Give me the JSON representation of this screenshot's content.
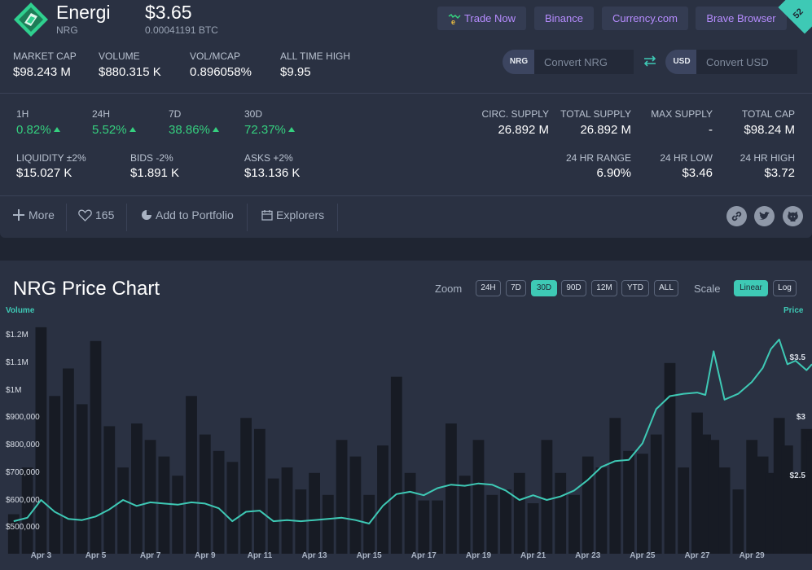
{
  "header": {
    "name": "Energi",
    "symbol": "NRG",
    "price": "$3.65",
    "price_btc": "0.00041191 BTC",
    "ribbon": "52",
    "buttons": [
      {
        "label": "Trade Now",
        "icon": "trade-now-logo-icon"
      },
      {
        "label": "Binance"
      },
      {
        "label": "Currency.com"
      },
      {
        "label": "Brave Browser"
      }
    ]
  },
  "stats": {
    "market_cap": {
      "label": "MARKET CAP",
      "value": "$98.243 M"
    },
    "volume": {
      "label": "VOLUME",
      "value": "$880.315 K"
    },
    "vol_mcap": {
      "label": "VOL/MCAP",
      "value": "0.896058%"
    },
    "ath": {
      "label": "ALL TIME HIGH",
      "value": "$9.95"
    }
  },
  "converter": {
    "from_code": "NRG",
    "from_placeholder": "Convert NRG",
    "to_code": "USD",
    "to_placeholder": "Convert USD",
    "swap_icon": "swap-arrows-icon"
  },
  "changes": [
    {
      "label": "1H",
      "value": "0.82%"
    },
    {
      "label": "24H",
      "value": "5.52%"
    },
    {
      "label": "7D",
      "value": "38.86%"
    },
    {
      "label": "30D",
      "value": "72.37%"
    }
  ],
  "supply": [
    {
      "label": "CIRC. SUPPLY",
      "value": "26.892 M"
    },
    {
      "label": "TOTAL SUPPLY",
      "value": "26.892 M"
    },
    {
      "label": "MAX SUPPLY",
      "value": "-"
    },
    {
      "label": "TOTAL CAP",
      "value": "$98.24 M"
    }
  ],
  "liquidity": [
    {
      "label": "LIQUIDITY ±2%",
      "value": "$15.027 K"
    },
    {
      "label": "BIDS -2%",
      "value": "$1.891 K"
    },
    {
      "label": "ASKS +2%",
      "value": "$13.136 K"
    }
  ],
  "range": [
    {
      "label": "24 HR RANGE",
      "value": "6.90%"
    },
    {
      "label": "24 HR LOW",
      "value": "$3.46"
    },
    {
      "label": "24 HR HIGH",
      "value": "$3.72"
    }
  ],
  "actions": {
    "more": "More",
    "likes": "165",
    "portfolio": "Add to Portfolio",
    "explorers": "Explorers"
  },
  "social_icons": [
    "link-icon",
    "twitter-icon",
    "github-icon"
  ],
  "chart_controls": {
    "title": "NRG Price Chart",
    "zoom_label": "Zoom",
    "zoom": [
      "24H",
      "7D",
      "30D",
      "90D",
      "12M",
      "YTD",
      "ALL"
    ],
    "zoom_active": "30D",
    "scale_label": "Scale",
    "scale": [
      "Linear",
      "Log"
    ],
    "scale_active": "Linear"
  },
  "colors": {
    "accent": "#3ec9b5",
    "positive": "#35d07f",
    "pill_text": "#b68cff",
    "volume_bars": "#171b24"
  },
  "chart_data": {
    "type": "line",
    "volume_axis_title": "Volume",
    "price_axis_title": "Price",
    "volume_ticks": [
      "$1.2M",
      "$1.1M",
      "$1M",
      "$900,000",
      "$800,000",
      "$700,000",
      "$600,000",
      "$500,000"
    ],
    "volume_tick_values": [
      1200000,
      1100000,
      1000000,
      900000,
      800000,
      700000,
      600000,
      500000
    ],
    "price_ticks": [
      "$3.5",
      "$3",
      "$2.5"
    ],
    "price_tick_values": [
      3.5,
      3.0,
      2.5
    ],
    "x_ticks": [
      "Apr 3",
      "Apr 5",
      "Apr 7",
      "Apr 9",
      "Apr 11",
      "Apr 13",
      "Apr 15",
      "Apr 17",
      "Apr 19",
      "Apr 21",
      "Apr 23",
      "Apr 25",
      "Apr 27",
      "Apr 29"
    ],
    "x": [
      2.0,
      2.5,
      3.0,
      3.5,
      4.0,
      4.5,
      5.0,
      5.5,
      6.0,
      6.5,
      7.0,
      7.5,
      8.0,
      8.5,
      9.0,
      9.5,
      10.0,
      10.5,
      11.0,
      11.5,
      12.0,
      12.5,
      13.0,
      13.5,
      14.0,
      14.5,
      15.0,
      15.5,
      16.0,
      16.5,
      17.0,
      17.5,
      18.0,
      18.5,
      19.0,
      19.5,
      20.0,
      20.5,
      21.0,
      21.5,
      22.0,
      22.5,
      23.0,
      23.5,
      24.0,
      24.5,
      25.0,
      25.5,
      26.0,
      26.5,
      27.0,
      27.3,
      27.6,
      28.0,
      28.5,
      29.0,
      29.4,
      29.7,
      30.0,
      30.3,
      30.6,
      31.0,
      31.2
    ],
    "series": [
      {
        "name": "Price",
        "values": [
          2.12,
          2.15,
          2.3,
          2.2,
          2.14,
          2.13,
          2.16,
          2.22,
          2.3,
          2.25,
          2.28,
          2.27,
          2.26,
          2.28,
          2.27,
          2.23,
          2.12,
          2.2,
          2.21,
          2.12,
          2.13,
          2.12,
          2.13,
          2.14,
          2.15,
          2.13,
          2.1,
          2.25,
          2.35,
          2.37,
          2.34,
          2.4,
          2.43,
          2.42,
          2.44,
          2.43,
          2.38,
          2.3,
          2.34,
          2.3,
          2.33,
          2.38,
          2.47,
          2.58,
          2.63,
          2.64,
          2.78,
          3.07,
          3.18,
          3.2,
          3.21,
          3.19,
          3.56,
          3.15,
          3.2,
          3.3,
          3.42,
          3.58,
          3.66,
          3.45,
          3.48,
          3.4,
          3.45
        ]
      },
      {
        "name": "Volume",
        "values": [
          550000,
          720000,
          1230000,
          980000,
          1080000,
          950000,
          1180000,
          870000,
          720000,
          880000,
          820000,
          760000,
          690000,
          980000,
          840000,
          780000,
          740000,
          900000,
          860000,
          680000,
          720000,
          640000,
          700000,
          620000,
          820000,
          760000,
          620000,
          800000,
          1050000,
          700000,
          600000,
          600000,
          880000,
          690000,
          820000,
          620000,
          640000,
          700000,
          590000,
          820000,
          700000,
          620000,
          760000,
          720000,
          900000,
          780000,
          770000,
          840000,
          1100000,
          720000,
          920000,
          840000,
          820000,
          720000,
          640000,
          820000,
          760000,
          700000,
          900000,
          800000,
          700000,
          860000,
          820000
        ]
      }
    ],
    "grid": false,
    "volume_range": [
      430000,
      1280000
    ],
    "price_range": [
      1.9,
      3.88
    ]
  }
}
